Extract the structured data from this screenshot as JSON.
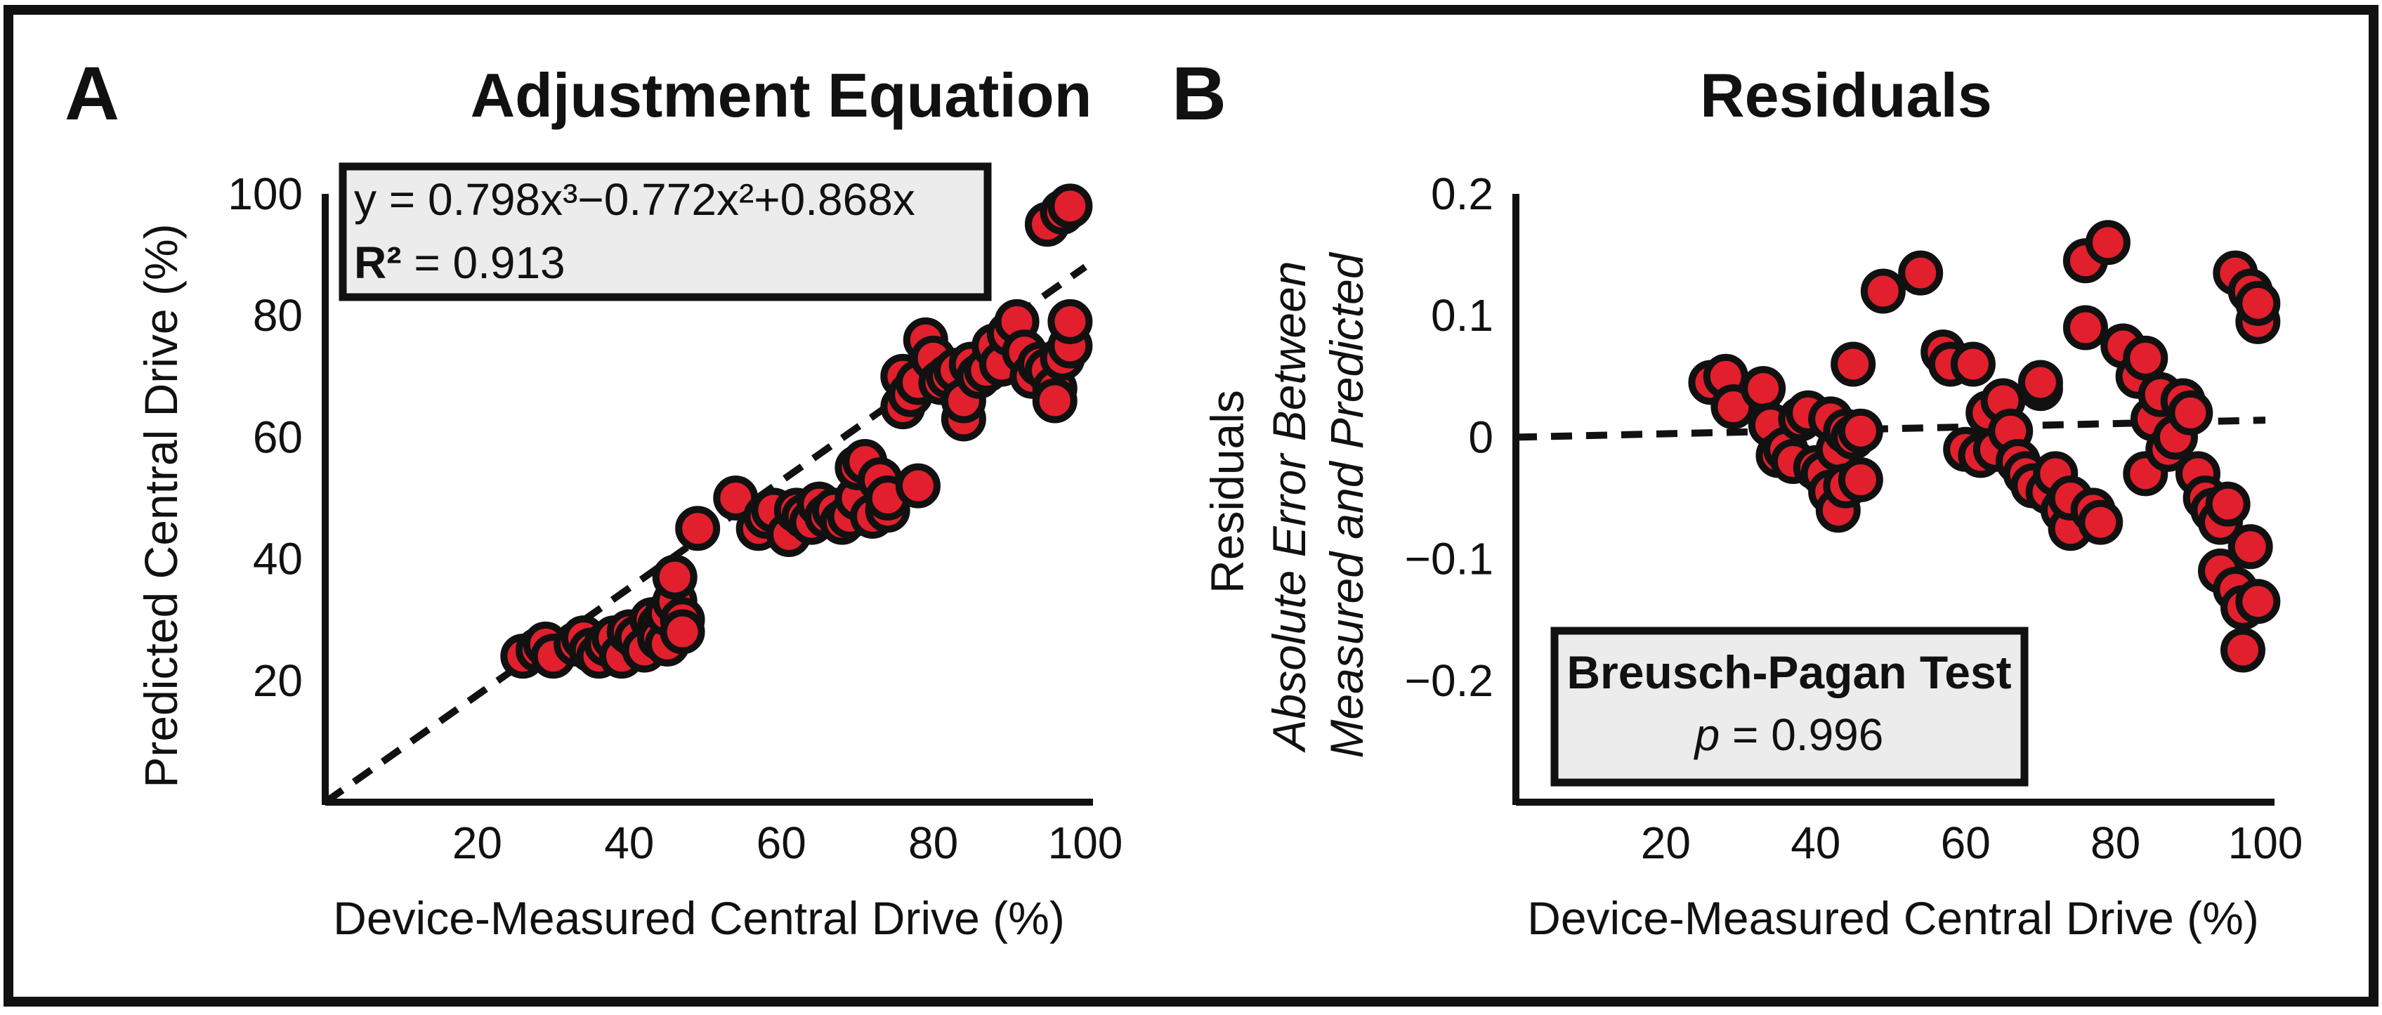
{
  "colors": {
    "point_fill": "#e21f2d",
    "point_stroke": "#111111",
    "box_fill": "#ececec"
  },
  "chart_data": [
    {
      "panel": "A",
      "type": "scatter",
      "title": "Adjustment Equation",
      "xlabel": "Device-Measured Central Drive (%)",
      "ylabel": "Predicted Central Drive (%)",
      "xlim": [
        0,
        100
      ],
      "ylim": [
        0,
        100
      ],
      "xticks": [
        "20",
        "40",
        "60",
        "80",
        "100"
      ],
      "yticks": [
        "20",
        "40",
        "60",
        "80",
        "100"
      ],
      "annotation": {
        "equation": "y = 0.798x³−0.772x²+0.868x",
        "r2_label": "R²",
        "r2_value": " = 0.913"
      },
      "fit_line": {
        "x": [
          0,
          100
        ],
        "y": [
          0,
          88
        ]
      },
      "points": [
        [
          26,
          24
        ],
        [
          28,
          25
        ],
        [
          29,
          26
        ],
        [
          30,
          24
        ],
        [
          33,
          26
        ],
        [
          34,
          27
        ],
        [
          35,
          25
        ],
        [
          36,
          24
        ],
        [
          37,
          26
        ],
        [
          38,
          27
        ],
        [
          39,
          24
        ],
        [
          40,
          28
        ],
        [
          41,
          27
        ],
        [
          42,
          25
        ],
        [
          43,
          30
        ],
        [
          44,
          29
        ],
        [
          44,
          27
        ],
        [
          45,
          26
        ],
        [
          45,
          31
        ],
        [
          46,
          33
        ],
        [
          46,
          37
        ],
        [
          47,
          30
        ],
        [
          47,
          28
        ],
        [
          49,
          45
        ],
        [
          54,
          50
        ],
        [
          57,
          45
        ],
        [
          58,
          47
        ],
        [
          59,
          48
        ],
        [
          61,
          44
        ],
        [
          62,
          48
        ],
        [
          63,
          47
        ],
        [
          64,
          46
        ],
        [
          65,
          49
        ],
        [
          66,
          47
        ],
        [
          67,
          48
        ],
        [
          68,
          46
        ],
        [
          69,
          47
        ],
        [
          70,
          50
        ],
        [
          70,
          55
        ],
        [
          71,
          56
        ],
        [
          72,
          47
        ],
        [
          73,
          53
        ],
        [
          74,
          48
        ],
        [
          74,
          50
        ],
        [
          76,
          70
        ],
        [
          76,
          65
        ],
        [
          77,
          67
        ],
        [
          78,
          52
        ],
        [
          78,
          69
        ],
        [
          79,
          76
        ],
        [
          80,
          73
        ],
        [
          81,
          69
        ],
        [
          82,
          70
        ],
        [
          83,
          71
        ],
        [
          84,
          63
        ],
        [
          84,
          66
        ],
        [
          85,
          72
        ],
        [
          86,
          70
        ],
        [
          87,
          71
        ],
        [
          88,
          75
        ],
        [
          89,
          72
        ],
        [
          90,
          77
        ],
        [
          91,
          79
        ],
        [
          92,
          74
        ],
        [
          93,
          70
        ],
        [
          94,
          72
        ],
        [
          95,
          71
        ],
        [
          95,
          95
        ],
        [
          96,
          68
        ],
        [
          96,
          66
        ],
        [
          97,
          73
        ],
        [
          97,
          97
        ],
        [
          98,
          98
        ],
        [
          98,
          75
        ],
        [
          98,
          79
        ]
      ]
    },
    {
      "panel": "B",
      "type": "scatter",
      "title": "Residuals",
      "xlabel": "Device-Measured Central Drive (%)",
      "ylabel_line1": "Residuals",
      "ylabel_line2": "Absolute Error Between",
      "ylabel_line3": "Measured and Predicted",
      "xlim": [
        0,
        100
      ],
      "ylim": [
        -0.3,
        0.2
      ],
      "xticks": [
        "20",
        "40",
        "60",
        "80",
        "100"
      ],
      "yticks": [
        "0.2",
        "0.1",
        "0",
        "−0.1",
        "−0.2"
      ],
      "annotation": {
        "test_name": "Breusch-Pagan Test",
        "p_label": "p",
        "p_value": " = 0.996"
      },
      "fit_line": {
        "x": [
          0,
          100
        ],
        "y": [
          0.0,
          0.014
        ]
      },
      "points": [
        [
          26,
          0.045
        ],
        [
          28,
          0.05
        ],
        [
          29,
          0.025
        ],
        [
          33,
          0.04
        ],
        [
          34,
          0.01
        ],
        [
          35,
          -0.015
        ],
        [
          36,
          -0.01
        ],
        [
          37,
          -0.02
        ],
        [
          38,
          0.015
        ],
        [
          39,
          0.02
        ],
        [
          40,
          -0.025
        ],
        [
          41,
          -0.03
        ],
        [
          42,
          0.015
        ],
        [
          42,
          -0.045
        ],
        [
          43,
          -0.01
        ],
        [
          43,
          -0.06
        ],
        [
          44,
          0.005
        ],
        [
          44,
          -0.04
        ],
        [
          45,
          0.06
        ],
        [
          45,
          0.0
        ],
        [
          46,
          -0.035
        ],
        [
          46,
          0.005
        ],
        [
          49,
          0.12
        ],
        [
          54,
          0.135
        ],
        [
          57,
          0.07
        ],
        [
          58,
          0.06
        ],
        [
          60,
          -0.01
        ],
        [
          61,
          0.06
        ],
        [
          62,
          -0.015
        ],
        [
          63,
          0.02
        ],
        [
          64,
          -0.01
        ],
        [
          65,
          0.03
        ],
        [
          66,
          0.005
        ],
        [
          67,
          -0.02
        ],
        [
          68,
          -0.03
        ],
        [
          69,
          -0.04
        ],
        [
          70,
          0.04
        ],
        [
          70,
          0.045
        ],
        [
          71,
          -0.045
        ],
        [
          72,
          -0.03
        ],
        [
          73,
          -0.06
        ],
        [
          74,
          -0.075
        ],
        [
          74,
          -0.05
        ],
        [
          76,
          0.145
        ],
        [
          76,
          0.09
        ],
        [
          77,
          -0.06
        ],
        [
          78,
          -0.07
        ],
        [
          79,
          0.16
        ],
        [
          81,
          0.075
        ],
        [
          83,
          0.05
        ],
        [
          84,
          0.065
        ],
        [
          84,
          -0.03
        ],
        [
          85,
          0.015
        ],
        [
          86,
          0.035
        ],
        [
          87,
          -0.01
        ],
        [
          88,
          0.0
        ],
        [
          89,
          0.03
        ],
        [
          90,
          0.02
        ],
        [
          91,
          -0.03
        ],
        [
          92,
          -0.05
        ],
        [
          93,
          -0.06
        ],
        [
          94,
          -0.07
        ],
        [
          94,
          -0.11
        ],
        [
          95,
          -0.055
        ],
        [
          96,
          0.135
        ],
        [
          96,
          -0.125
        ],
        [
          97,
          -0.14
        ],
        [
          97,
          -0.175
        ],
        [
          98,
          0.12
        ],
        [
          98,
          -0.09
        ],
        [
          99,
          0.095
        ],
        [
          99,
          0.11
        ],
        [
          99,
          -0.135
        ]
      ]
    }
  ]
}
